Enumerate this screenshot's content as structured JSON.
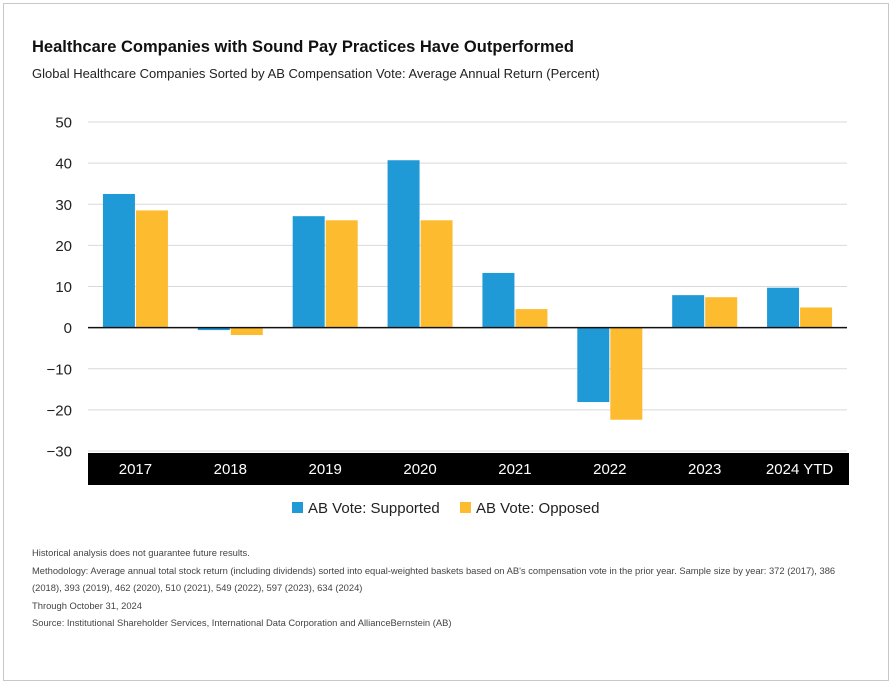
{
  "header": {
    "title": "Healthcare Companies with Sound Pay Practices Have Outperformed",
    "subtitle": "Global Healthcare Companies Sorted by AB Compensation Vote: Average Annual Return (Percent)"
  },
  "colors": {
    "supported": "#1f9ad6",
    "opposed": "#fdbb2f",
    "axis_band": "#000000",
    "grid": "#d9d9d9"
  },
  "chart_data": {
    "type": "bar",
    "title": "Healthcare Companies with Sound Pay Practices Have Outperformed",
    "subtitle": "Global Healthcare Companies Sorted by AB Compensation Vote: Average Annual Return (Percent)",
    "categories": [
      "2017",
      "2018",
      "2019",
      "2020",
      "2021",
      "2022",
      "2023",
      "2024 YTD"
    ],
    "series": [
      {
        "name": "AB Vote: Supported",
        "values": [
          32.5,
          -0.6,
          27.1,
          40.7,
          13.3,
          -18.1,
          7.9,
          9.7
        ]
      },
      {
        "name": "AB Vote: Opposed",
        "values": [
          28.5,
          -1.8,
          26.1,
          26.1,
          4.5,
          -22.4,
          7.4,
          4.9
        ]
      }
    ],
    "yticks": [
      -30,
      -20,
      -10,
      0,
      10,
      20,
      30,
      40,
      50
    ],
    "ytick_labels": [
      "−30",
      "−20",
      "−10",
      "0",
      "10",
      "20",
      "30",
      "40",
      "50"
    ],
    "ylim": [
      -30,
      50
    ],
    "grid": true,
    "legend_position": "bottom-center"
  },
  "footnotes": [
    "Historical analysis does not guarantee future results.",
    "Methodology: Average annual total stock return (including dividends) sorted into equal-weighted baskets based on AB's compensation vote in the prior year. Sample size by year: 372 (2017), 386 (2018), 393 (2019), 462 (2020), 510 (2021), 549 (2022), 597 (2023), 634 (2024)",
    "Through October 31, 2024",
    "Source: Institutional Shareholder Services, International Data Corporation and AllianceBernstein (AB)"
  ]
}
